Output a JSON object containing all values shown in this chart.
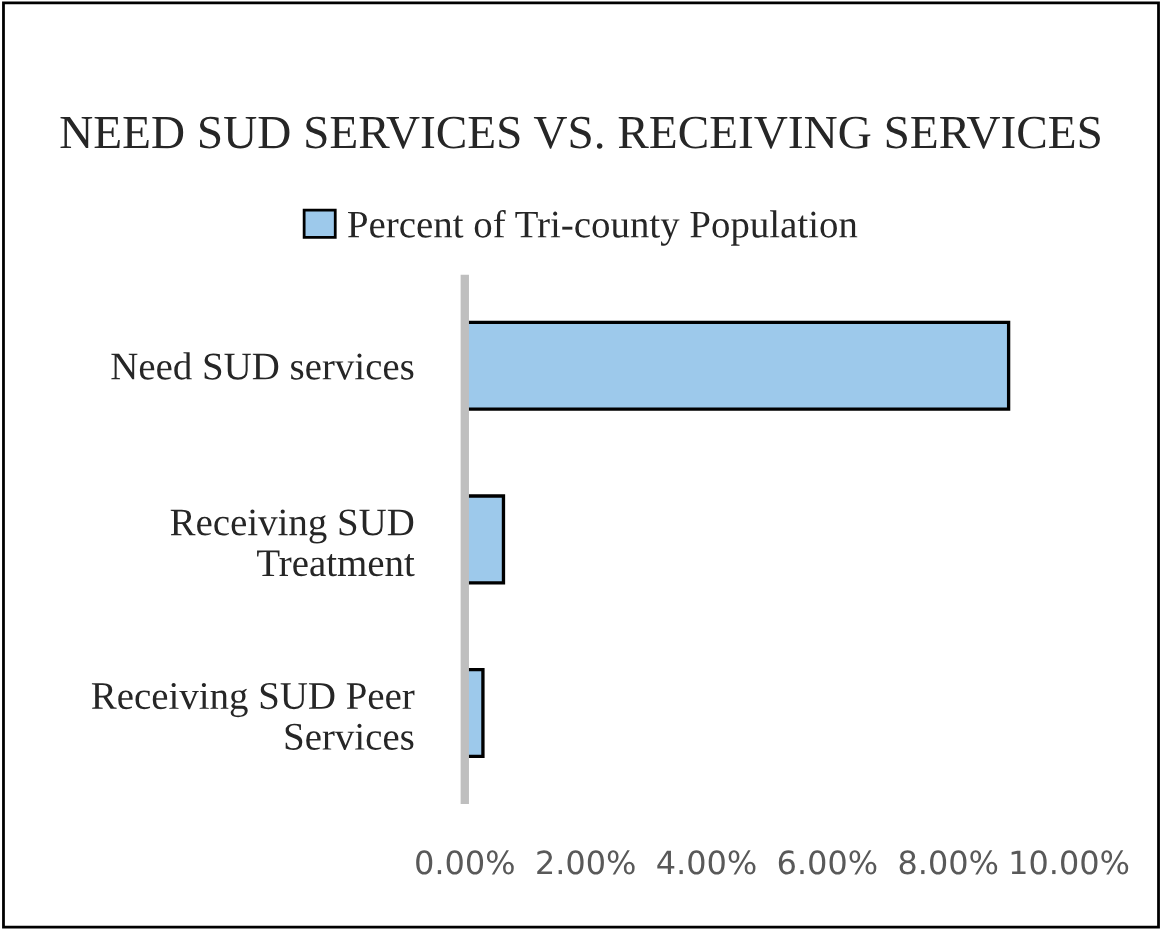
{
  "chart_data": {
    "type": "bar",
    "orientation": "horizontal",
    "title": "NEED SUD SERVICES VS. RECEIVING SERVICES",
    "categories": [
      "Need SUD services",
      "Receiving SUD\nTreatment",
      "Receiving SUD Peer\nServices"
    ],
    "series": [
      {
        "name": "Percent of Tri-county Population",
        "color": "#9dc9eb",
        "values": [
          9.0,
          0.64,
          0.3
        ]
      }
    ],
    "xlim": [
      0,
      10
    ],
    "xticks": [
      {
        "value": 0,
        "label": "0.00%"
      },
      {
        "value": 2,
        "label": "2.00%"
      },
      {
        "value": 4,
        "label": "4.00%"
      },
      {
        "value": 6,
        "label": "6.00%"
      },
      {
        "value": 8,
        "label": "8.00%"
      },
      {
        "value": 10,
        "label": "10.00%"
      }
    ],
    "grid": false,
    "legend": "top"
  }
}
